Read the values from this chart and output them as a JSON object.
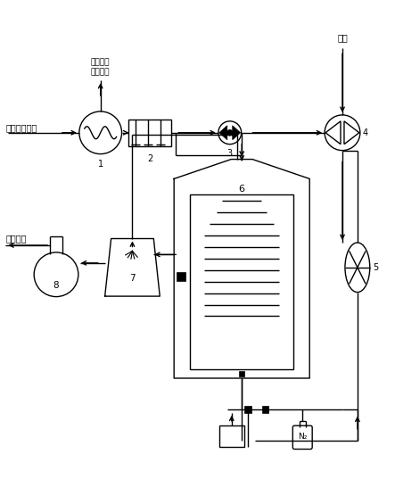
{
  "bg_color": "#ffffff",
  "line_color": "#000000",
  "labels": {
    "inlet": "含苯系物废气",
    "heat_recovery": "剩余热量\n回收利用",
    "air": "空气",
    "atmosphere": "火气环境",
    "n2": "N₂"
  },
  "figsize": [
    4.43,
    5.37
  ],
  "dpi": 100
}
